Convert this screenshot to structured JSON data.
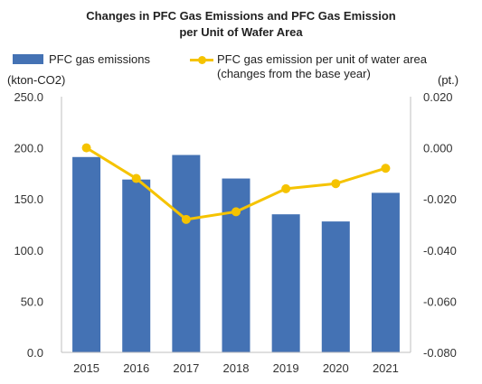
{
  "chart_data": {
    "type": "bar",
    "title": "Changes in PFC Gas Emissions and PFC Gas Emission",
    "title_line2": "per Unit of Wafer Area",
    "categories": [
      "2015",
      "2016",
      "2017",
      "2018",
      "2019",
      "2020",
      "2021"
    ],
    "series": [
      {
        "name": "PFC gas emissions",
        "type": "bar",
        "axis": "left",
        "values": [
          191,
          169,
          193,
          170,
          135,
          128,
          156
        ],
        "color": "#4472b4"
      },
      {
        "name": "PFC gas emission per unit of water area",
        "name_line2": "(changes from the base year)",
        "type": "line",
        "axis": "right",
        "values": [
          0.0,
          -0.012,
          -0.028,
          -0.025,
          -0.016,
          -0.014,
          -0.008
        ],
        "color": "#f5c300"
      }
    ],
    "y_left": {
      "unit": "(kton-CO2)",
      "ylim": [
        0,
        250
      ],
      "ticks": [
        "0.0",
        "50.0",
        "100.0",
        "150.0",
        "200.0",
        "250.0"
      ]
    },
    "y_right": {
      "unit": "(pt.)",
      "ylim": [
        -0.08,
        0.02
      ],
      "ticks": [
        "-0.080",
        "-0.060",
        "-0.040",
        "-0.020",
        "0.000",
        "0.020"
      ]
    },
    "grid": false,
    "legend": "top"
  }
}
